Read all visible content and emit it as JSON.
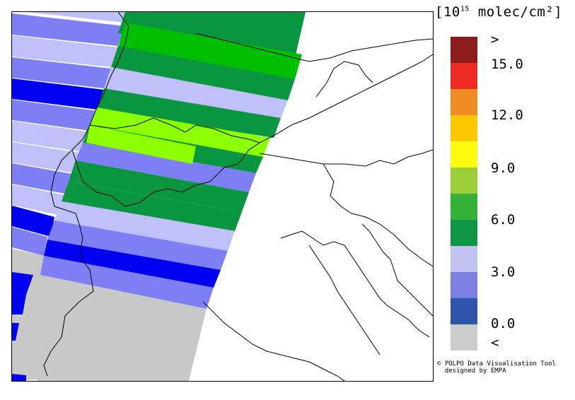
{
  "units": {
    "prefix": "[10",
    "exponent": "15",
    "suffix": " molec/cm²]"
  },
  "legend": {
    "colors": [
      "#8b1a1a",
      "#ee2a24",
      "#f08b24",
      "#fdc800",
      "#fcfa0f",
      "#9ccf37",
      "#35b136",
      "#0e9444",
      "#c1c2ee",
      "#7b80e2",
      "#2c54a8",
      "#cccccc"
    ],
    "ticks": [
      ">",
      "15.0",
      "12.0",
      "9.0",
      "6.0",
      "3.0",
      "0.0",
      "<"
    ]
  },
  "credit": {
    "line1": "© POLPO Data Visualisation Tool",
    "line2": "  designed by EMPA"
  },
  "map": {
    "pixel_colors": {
      "blue": "#0000f0",
      "mid_blue": "#7f7ff5",
      "light_blue": "#bfbffa",
      "dark_green": "#0a9641",
      "green": "#00be00",
      "lime": "#8cff00",
      "grey": "#c8c8c8"
    }
  }
}
